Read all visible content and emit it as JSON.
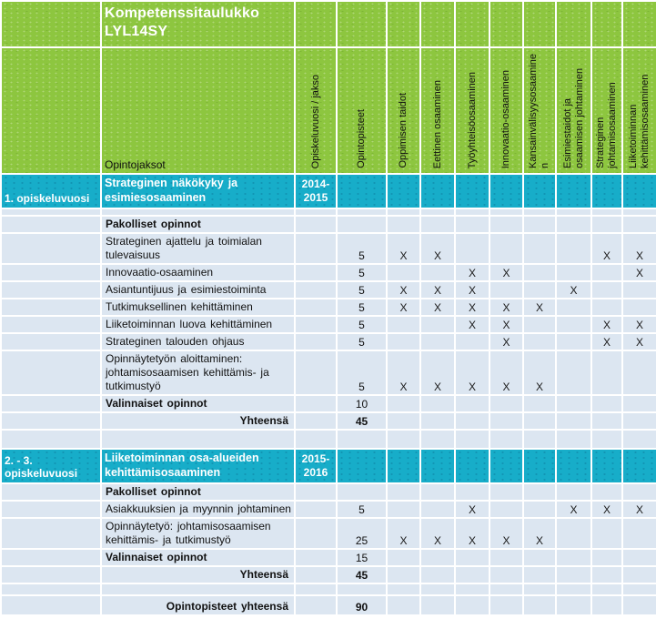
{
  "title": {
    "line1": "Kompetenssitaulukko",
    "line2": "LYL14SY"
  },
  "header": {
    "opintojaksot_label": "Opintojaksot",
    "competence_columns": [
      "Opiskeluvuosi / jakso",
      "Opintopisteet",
      "Oppimisen taidot",
      "Eettinen osaaminen",
      "Työyhteisöosaaminen",
      "Innovaatio-osaaminen",
      "Kansainvälisyysosaaminen",
      "Esimiestaidot ja osaamisen johtaminen",
      "Strateginen johtamisosaaminen",
      "Liiketoiminnan kehittämisosaaminen"
    ]
  },
  "sections": [
    {
      "year_label": "1. opiskeluvuosi",
      "module_title": "Strateginen näkökyky ja esimiesosaaminen",
      "period": "2014-2015",
      "rows": [
        {
          "type": "spacer-small"
        },
        {
          "label": "Pakolliset opinnot",
          "bold": true
        },
        {
          "label": "Strateginen ajattelu ja toimialan tulevaisuus",
          "points": "5",
          "marks": [
            "X",
            "X",
            "",
            "",
            "",
            "",
            "X",
            "X"
          ]
        },
        {
          "label": "Innovaatio-osaaminen",
          "points": "5",
          "marks": [
            "",
            "",
            "X",
            "X",
            "",
            "",
            "",
            "X"
          ]
        },
        {
          "label": "Asiantuntijuus ja esimiestoiminta",
          "points": "5",
          "marks": [
            "X",
            "X",
            "X",
            "",
            "",
            "X",
            "",
            ""
          ]
        },
        {
          "label": "Tutkimuksellinen kehittäminen",
          "points": "5",
          "marks": [
            "X",
            "X",
            "X",
            "X",
            "X",
            "",
            "",
            ""
          ]
        },
        {
          "label": "Liiketoiminnan luova kehittäminen",
          "points": "5",
          "marks": [
            "",
            "",
            "X",
            "X",
            "",
            "",
            "X",
            "X"
          ]
        },
        {
          "label": "Strateginen talouden ohjaus",
          "points": "5",
          "marks": [
            "",
            "",
            "",
            "X",
            "",
            "",
            "X",
            "X"
          ]
        },
        {
          "label": "Opinnäytetyön aloittaminen: johtamisosaamisen kehittämis- ja tutkimustyö",
          "points": "5",
          "marks": [
            "X",
            "X",
            "X",
            "X",
            "X",
            "",
            "",
            ""
          ]
        },
        {
          "label": "Valinnaiset opinnot",
          "bold": true,
          "points": "10"
        },
        {
          "label": "Yhteensä",
          "bold": true,
          "align": "right",
          "points": "45",
          "points_bold": true
        },
        {
          "type": "spacer"
        }
      ]
    },
    {
      "year_label": "2. - 3. opiskeluvuosi",
      "module_title": "Liiketoiminnan osa-alueiden kehittämisosaaminen",
      "period": "2015-2016",
      "rows": [
        {
          "label": "Pakolliset opinnot",
          "bold": true
        },
        {
          "label": "Asiakkuuksien ja myynnin johtaminen",
          "points": "5",
          "marks": [
            "",
            "",
            "X",
            "",
            "",
            "X",
            "X",
            "X"
          ]
        },
        {
          "label": "Opinnäytetyö: johtamisosaamisen kehittämis- ja tutkimustyö",
          "points": "25",
          "marks": [
            "X",
            "X",
            "X",
            "X",
            "X",
            "",
            "",
            ""
          ]
        },
        {
          "label": "Valinnaiset opinnot",
          "bold": true,
          "points": "15"
        },
        {
          "label": "Yhteensä",
          "bold": true,
          "align": "right",
          "points": "45",
          "points_bold": true
        },
        {
          "type": "spacer-mid"
        }
      ]
    }
  ],
  "footer": {
    "total_label": "Opintopisteet yhteensä",
    "total_points": "90"
  },
  "colors": {
    "header_green": "#8dc63f",
    "band_cyan": "#17adc9",
    "row_blue": "#dce6f1",
    "grid_white": "#ffffff",
    "band_text": "#ffffff",
    "body_text": "#111111"
  }
}
